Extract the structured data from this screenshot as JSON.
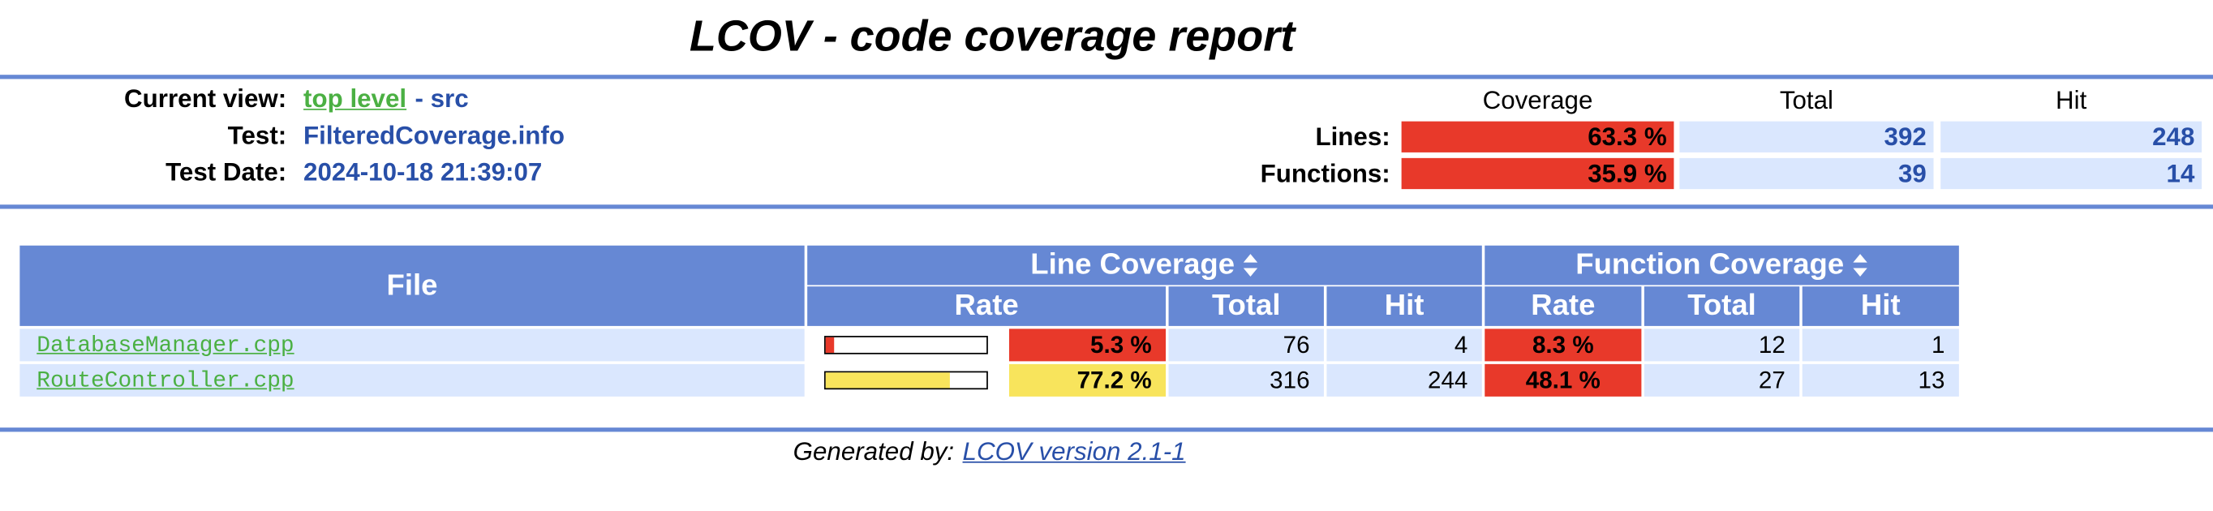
{
  "header": {
    "title": "LCOV - code coverage report"
  },
  "info": {
    "current_view_label": "Current view:",
    "current_view_link": "top level",
    "current_view_path": "- src",
    "test_label": "Test:",
    "test": "FilteredCoverage.info",
    "test_date_label": "Test Date:",
    "test_date": "2024-10-18 21:39:07"
  },
  "summary": {
    "columns": [
      "Coverage",
      "Total",
      "Hit"
    ],
    "rows": [
      {
        "label": "Lines:",
        "coverage": "63.3 %",
        "total": "392",
        "hit": "248"
      },
      {
        "label": "Functions:",
        "coverage": "35.9 %",
        "total": "39",
        "hit": "14"
      }
    ]
  },
  "files": {
    "header": {
      "file": "File",
      "line_coverage": "Line Coverage",
      "function_coverage": "Function Coverage",
      "rate": "Rate",
      "total": "Total",
      "hit": "Hit"
    },
    "rows": [
      {
        "name": "DatabaseManager.cpp",
        "line_rate": {
          "value": 5.3,
          "label": "5.3 %"
        },
        "line_total": "76",
        "line_hit": "4",
        "func_rate": "8.3 %",
        "func_total": "12",
        "func_hit": "1"
      },
      {
        "name": "RouteController.cpp",
        "line_rate": {
          "value": 77.2,
          "label": "77.2 %"
        },
        "line_total": "316",
        "line_hit": "244",
        "func_rate": "48.1 %",
        "func_total": "27",
        "func_hit": "13"
      }
    ]
  },
  "footer": {
    "generated_by": "Generated by:",
    "link": "LCOV version 2.1-1"
  }
}
